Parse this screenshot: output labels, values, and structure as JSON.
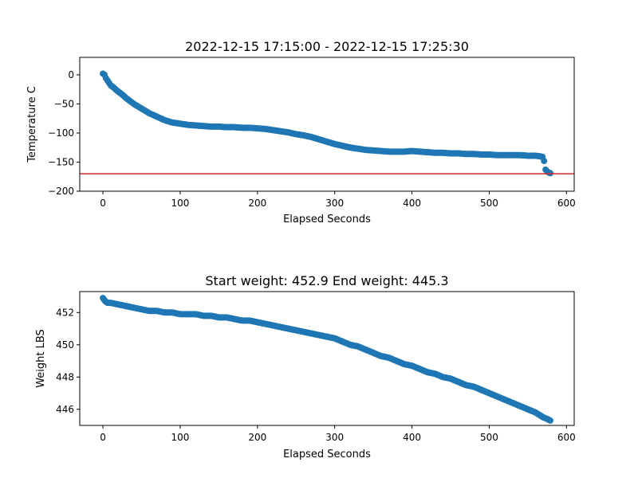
{
  "chart_data": [
    {
      "type": "scatter",
      "title": "2022-12-15 17:15:00 - 2022-12-15 17:25:30",
      "xlabel": "Elapsed Seconds",
      "ylabel": "Temperature C",
      "xlim": [
        -30,
        610
      ],
      "ylim": [
        -200,
        30
      ],
      "xticks": [
        0,
        100,
        200,
        300,
        400,
        500,
        600
      ],
      "yticks": [
        0,
        -50,
        -100,
        -150,
        -200
      ],
      "marker_color": "#1f77b4",
      "reference_line": {
        "y": -170,
        "color": "#d62728"
      },
      "series": [
        {
          "points": [
            [
              0,
              2
            ],
            [
              2,
              0
            ],
            [
              4,
              -6
            ],
            [
              6,
              -10
            ],
            [
              8,
              -14
            ],
            [
              10,
              -18
            ],
            [
              14,
              -22
            ],
            [
              18,
              -27
            ],
            [
              22,
              -31
            ],
            [
              26,
              -35
            ],
            [
              30,
              -40
            ],
            [
              35,
              -45
            ],
            [
              40,
              -50
            ],
            [
              45,
              -54
            ],
            [
              50,
              -58
            ],
            [
              55,
              -62
            ],
            [
              60,
              -66
            ],
            [
              65,
              -69
            ],
            [
              70,
              -72
            ],
            [
              75,
              -75
            ],
            [
              80,
              -78
            ],
            [
              85,
              -80
            ],
            [
              90,
              -82
            ],
            [
              95,
              -83
            ],
            [
              100,
              -84
            ],
            [
              110,
              -86
            ],
            [
              120,
              -87
            ],
            [
              130,
              -88
            ],
            [
              140,
              -89
            ],
            [
              150,
              -89
            ],
            [
              160,
              -90
            ],
            [
              170,
              -90
            ],
            [
              180,
              -91
            ],
            [
              190,
              -91
            ],
            [
              200,
              -92
            ],
            [
              210,
              -93
            ],
            [
              220,
              -95
            ],
            [
              230,
              -97
            ],
            [
              240,
              -99
            ],
            [
              250,
              -102
            ],
            [
              260,
              -104
            ],
            [
              270,
              -107
            ],
            [
              280,
              -111
            ],
            [
              290,
              -115
            ],
            [
              300,
              -119
            ],
            [
              310,
              -122
            ],
            [
              320,
              -125
            ],
            [
              330,
              -127
            ],
            [
              340,
              -129
            ],
            [
              350,
              -130
            ],
            [
              360,
              -131
            ],
            [
              370,
              -132
            ],
            [
              380,
              -132
            ],
            [
              390,
              -132
            ],
            [
              400,
              -131
            ],
            [
              410,
              -132
            ],
            [
              420,
              -133
            ],
            [
              430,
              -134
            ],
            [
              440,
              -134
            ],
            [
              450,
              -135
            ],
            [
              460,
              -135
            ],
            [
              470,
              -136
            ],
            [
              480,
              -136
            ],
            [
              490,
              -137
            ],
            [
              500,
              -137
            ],
            [
              510,
              -138
            ],
            [
              520,
              -138
            ],
            [
              530,
              -138
            ],
            [
              540,
              -138
            ],
            [
              550,
              -139
            ],
            [
              560,
              -139
            ],
            [
              565,
              -140
            ],
            [
              569,
              -141
            ],
            [
              571,
              -148
            ],
            [
              573,
              -163
            ],
            [
              575,
              -166
            ],
            [
              577,
              -168
            ],
            [
              579,
              -169
            ]
          ]
        }
      ]
    },
    {
      "type": "scatter",
      "title": "Start weight: 452.9 End weight: 445.3",
      "xlabel": "Elapsed Seconds",
      "ylabel": "Weight LBS",
      "xlim": [
        -30,
        610
      ],
      "ylim": [
        445,
        453.3
      ],
      "xticks": [
        0,
        100,
        200,
        300,
        400,
        500,
        600
      ],
      "yticks": [
        446,
        448,
        450,
        452
      ],
      "marker_color": "#1f77b4",
      "series": [
        {
          "points": [
            [
              0,
              452.9
            ],
            [
              3,
              452.7
            ],
            [
              6,
              452.6
            ],
            [
              10,
              452.6
            ],
            [
              20,
              452.5
            ],
            [
              30,
              452.4
            ],
            [
              40,
              452.3
            ],
            [
              50,
              452.2
            ],
            [
              60,
              452.1
            ],
            [
              70,
              452.1
            ],
            [
              80,
              452.0
            ],
            [
              90,
              452.0
            ],
            [
              100,
              451.9
            ],
            [
              110,
              451.9
            ],
            [
              120,
              451.9
            ],
            [
              130,
              451.8
            ],
            [
              140,
              451.8
            ],
            [
              150,
              451.7
            ],
            [
              160,
              451.7
            ],
            [
              170,
              451.6
            ],
            [
              180,
              451.5
            ],
            [
              190,
              451.5
            ],
            [
              200,
              451.4
            ],
            [
              210,
              451.3
            ],
            [
              220,
              451.2
            ],
            [
              230,
              451.1
            ],
            [
              240,
              451.0
            ],
            [
              250,
              450.9
            ],
            [
              260,
              450.8
            ],
            [
              270,
              450.7
            ],
            [
              280,
              450.6
            ],
            [
              290,
              450.5
            ],
            [
              300,
              450.4
            ],
            [
              310,
              450.2
            ],
            [
              320,
              450.0
            ],
            [
              330,
              449.9
            ],
            [
              340,
              449.7
            ],
            [
              350,
              449.5
            ],
            [
              360,
              449.3
            ],
            [
              370,
              449.2
            ],
            [
              380,
              449.0
            ],
            [
              390,
              448.8
            ],
            [
              400,
              448.7
            ],
            [
              410,
              448.5
            ],
            [
              420,
              448.3
            ],
            [
              430,
              448.2
            ],
            [
              440,
              448.0
            ],
            [
              450,
              447.9
            ],
            [
              460,
              447.7
            ],
            [
              470,
              447.5
            ],
            [
              480,
              447.4
            ],
            [
              490,
              447.2
            ],
            [
              500,
              447.0
            ],
            [
              510,
              446.8
            ],
            [
              520,
              446.6
            ],
            [
              530,
              446.4
            ],
            [
              540,
              446.2
            ],
            [
              550,
              446.0
            ],
            [
              560,
              445.8
            ],
            [
              570,
              445.5
            ],
            [
              575,
              445.4
            ],
            [
              579,
              445.3
            ]
          ]
        }
      ]
    }
  ]
}
